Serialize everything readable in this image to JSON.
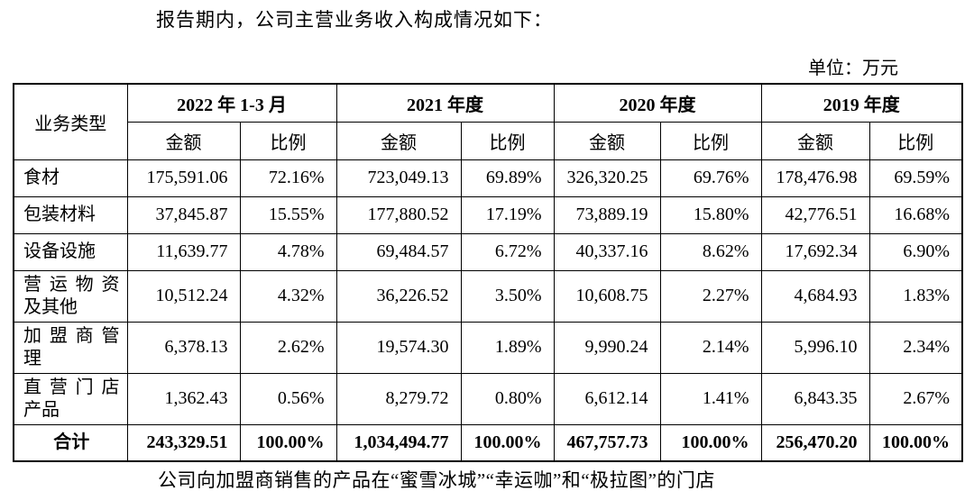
{
  "page": {
    "intro_text": "报告期内，公司主营业务收入构成情况如下：",
    "unit_label": "单位：万元",
    "footer_text": "公司向加盟商销售的产品在“蜜雪冰城”“幸运咖”和“极拉图”的门店"
  },
  "table": {
    "header": {
      "business_type": "业务类型",
      "periods": [
        "2022 年 1-3 月",
        "2021 年度",
        "2020 年度",
        "2019 年度"
      ],
      "amount_label": "金额",
      "ratio_label": "比例"
    },
    "rows": [
      {
        "label_lines": [
          "食材"
        ],
        "values": [
          "175,591.06",
          "72.16%",
          "723,049.13",
          "69.89%",
          "326,320.25",
          "69.76%",
          "178,476.98",
          "69.59%"
        ]
      },
      {
        "label_lines": [
          "包装材料"
        ],
        "values": [
          "37,845.87",
          "15.55%",
          "177,880.52",
          "17.19%",
          "73,889.19",
          "15.80%",
          "42,776.51",
          "16.68%"
        ]
      },
      {
        "label_lines": [
          "设备设施"
        ],
        "values": [
          "11,639.77",
          "4.78%",
          "69,484.57",
          "6.72%",
          "40,337.16",
          "8.62%",
          "17,692.34",
          "6.90%"
        ]
      },
      {
        "label_lines": [
          "营运物资",
          "及其他"
        ],
        "values": [
          "10,512.24",
          "4.32%",
          "36,226.52",
          "3.50%",
          "10,608.75",
          "2.27%",
          "4,684.93",
          "1.83%"
        ]
      },
      {
        "label_lines": [
          "加盟商管",
          "理"
        ],
        "values": [
          "6,378.13",
          "2.62%",
          "19,574.30",
          "1.89%",
          "9,990.24",
          "2.14%",
          "5,996.10",
          "2.34%"
        ]
      },
      {
        "label_lines": [
          "直营门店",
          "产品"
        ],
        "values": [
          "1,362.43",
          "0.56%",
          "8,279.72",
          "0.80%",
          "6,612.14",
          "1.41%",
          "6,843.35",
          "2.67%"
        ]
      },
      {
        "label_lines": [
          "合计"
        ],
        "total": true,
        "values": [
          "243,329.51",
          "100.00%",
          "1,034,494.77",
          "100.00%",
          "467,757.73",
          "100.00%",
          "256,470.20",
          "100.00%"
        ]
      }
    ]
  }
}
